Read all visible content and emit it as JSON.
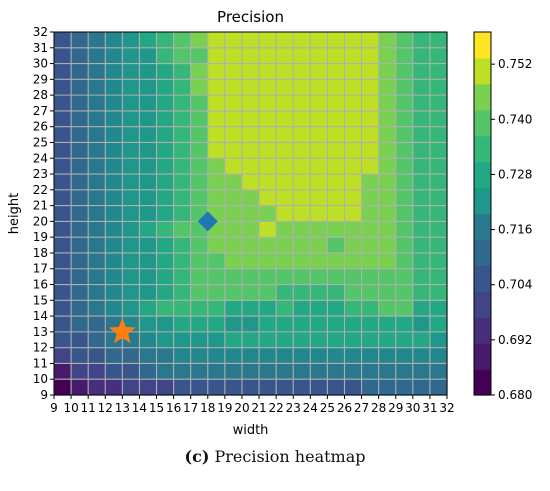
{
  "chart_data": {
    "type": "heatmap",
    "title": "Precision",
    "xlabel": "width",
    "ylabel": "height",
    "x_range": [
      9,
      32
    ],
    "y_range": [
      9,
      32
    ],
    "x_ticks": [
      9,
      10,
      11,
      12,
      13,
      14,
      15,
      16,
      17,
      18,
      19,
      20,
      21,
      22,
      23,
      24,
      25,
      26,
      27,
      28,
      29,
      30,
      31,
      32
    ],
    "y_ticks": [
      9,
      10,
      11,
      12,
      13,
      14,
      15,
      16,
      17,
      18,
      19,
      20,
      21,
      22,
      23,
      24,
      25,
      26,
      27,
      28,
      29,
      30,
      31,
      32
    ],
    "grid": true,
    "colormap": "viridis",
    "colorbar": {
      "range": [
        0.68,
        0.759
      ],
      "ticks": [
        "0.680",
        "0.692",
        "0.704",
        "0.716",
        "0.728",
        "0.740",
        "0.752"
      ],
      "levels": 14
    },
    "rows_bottom_to_top": [
      "01223334444444444455555",
      "13344566666666666666666",
      "34455667777777777777777",
      "44566788889999999999998",
      "45567889998899999999989",
      "456789AAAA999A999AABB99",
      "4567889ABBBBBAAAABBBBAA",
      "4567889ABBBBBBBBBBBBBAA",
      "4567889ABBCCCCCCCCCCBAA",
      "4567889ABCCCCCCCBCCCBAA",
      "456789ABBCCCDCCCCCCCBAA",
      "4567889ABCCCCDDDDDCCBAA",
      "4567889ABCCCDDDDDDCCBAA",
      "4567889ABCCDDDDDDDCCBAA",
      "4567889ABCDDDDDDDDDCBAA",
      "4567889ABDDDDDDDDDDCBAA",
      "4567889ABDDDDDDDDDDCBAA",
      "4567889ABDDDDDDDDDDCBAA",
      "4567889ABDDDDDDDDDDCBAA",
      "4567889ACDDDDDDDDDDCBAA",
      "4567889ACDDDDDDDDDDCBAA",
      "456788ABBDDDDDDDDDDCBAA",
      "456789ABCDDDDDDDDDDCBAA"
    ],
    "markers": [
      {
        "name": "star",
        "x": 13,
        "y": 13,
        "color": "#ff7f0e"
      },
      {
        "name": "diamond",
        "x": 18,
        "y": 20,
        "color": "#1f77b4"
      }
    ]
  },
  "caption": {
    "label": "(c)",
    "text": " Precision heatmap"
  },
  "colors": {
    "grid": "#b0b0b0",
    "viridis": [
      "#440154",
      "#481a6c",
      "#472f7d",
      "#414487",
      "#39568c",
      "#31688e",
      "#2a788e",
      "#23888e",
      "#1f988b",
      "#22a884",
      "#35b779",
      "#54c568",
      "#7ad151",
      "#bddf26",
      "#fde725"
    ]
  }
}
